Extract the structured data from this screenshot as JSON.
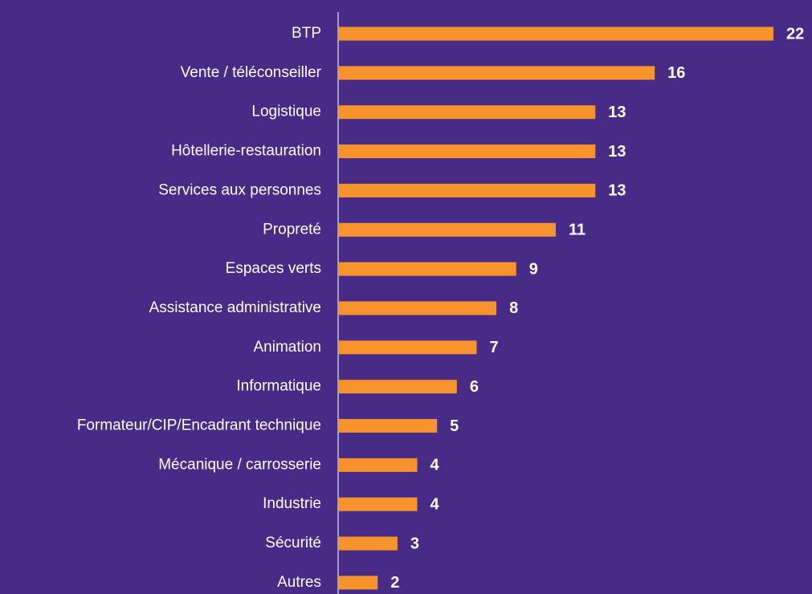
{
  "chart_data": {
    "type": "bar",
    "orientation": "horizontal",
    "categories": [
      "BTP",
      "Vente / téléconseiller",
      "Logistique",
      "Hôtellerie-restauration",
      "Services aux personnes",
      "Propreté",
      "Espaces verts",
      "Assistance administrative",
      "Animation",
      "Informatique",
      "Formateur/CIP/Encadrant technique",
      "Mécanique / carrosserie",
      "Industrie",
      "Sécurité",
      "Autres"
    ],
    "values": [
      22,
      16,
      13,
      13,
      13,
      11,
      9,
      8,
      7,
      6,
      5,
      4,
      4,
      3,
      2
    ],
    "color": "#f7932d"
  }
}
